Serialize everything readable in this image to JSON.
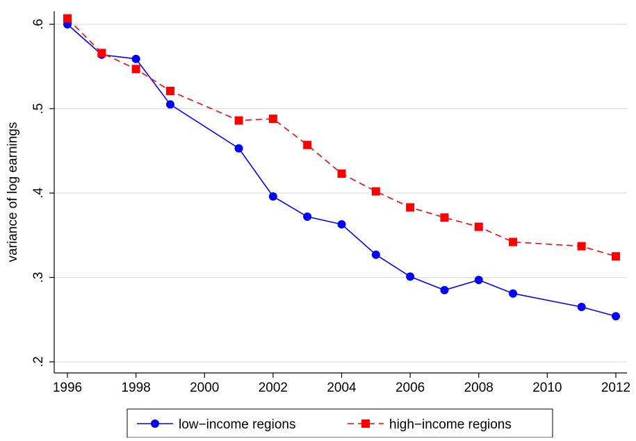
{
  "chart_data": {
    "type": "line",
    "title": "",
    "xlabel": "",
    "ylabel": "variance of log earnings",
    "xlim": [
      1996,
      2012
    ],
    "ylim": [
      0.2,
      0.6
    ],
    "x_ticks": [
      1996,
      1998,
      2000,
      2002,
      2004,
      2006,
      2008,
      2010,
      2012
    ],
    "x_tick_labels": [
      "1996",
      "1998",
      "2000",
      "2002",
      "2004",
      "2006",
      "2008",
      "2010",
      "2012"
    ],
    "y_ticks": [
      0.2,
      0.3,
      0.4,
      0.5,
      0.6
    ],
    "y_tick_labels": [
      ".2",
      ".3",
      ".4",
      ".5",
      ".6"
    ],
    "grid": "horizontal",
    "legend_position": "bottom",
    "series": [
      {
        "name": "low−income regions",
        "color": "#0000ff",
        "marker": "circle",
        "line_style": "solid",
        "points": [
          {
            "x": 1996,
            "y": 0.6
          },
          {
            "x": 1997,
            "y": 0.564
          },
          {
            "x": 1998,
            "y": 0.559
          },
          {
            "x": 1999,
            "y": 0.505
          },
          {
            "x": 2001,
            "y": 0.453
          },
          {
            "x": 2002,
            "y": 0.396
          },
          {
            "x": 2003,
            "y": 0.372
          },
          {
            "x": 2004,
            "y": 0.363
          },
          {
            "x": 2005,
            "y": 0.327
          },
          {
            "x": 2006,
            "y": 0.301
          },
          {
            "x": 2007,
            "y": 0.285
          },
          {
            "x": 2008,
            "y": 0.297
          },
          {
            "x": 2009,
            "y": 0.281
          },
          {
            "x": 2011,
            "y": 0.265
          },
          {
            "x": 2012,
            "y": 0.254
          }
        ]
      },
      {
        "name": "high−income regions",
        "color": "#ff0000",
        "marker": "square",
        "line_style": "dashed",
        "points": [
          {
            "x": 1996,
            "y": 0.607
          },
          {
            "x": 1997,
            "y": 0.566
          },
          {
            "x": 1998,
            "y": 0.547
          },
          {
            "x": 1999,
            "y": 0.521
          },
          {
            "x": 2001,
            "y": 0.486
          },
          {
            "x": 2002,
            "y": 0.488
          },
          {
            "x": 2003,
            "y": 0.457
          },
          {
            "x": 2004,
            "y": 0.423
          },
          {
            "x": 2005,
            "y": 0.402
          },
          {
            "x": 2006,
            "y": 0.383
          },
          {
            "x": 2007,
            "y": 0.371
          },
          {
            "x": 2008,
            "y": 0.36
          },
          {
            "x": 2009,
            "y": 0.342
          },
          {
            "x": 2011,
            "y": 0.337
          },
          {
            "x": 2012,
            "y": 0.325
          }
        ]
      }
    ]
  }
}
